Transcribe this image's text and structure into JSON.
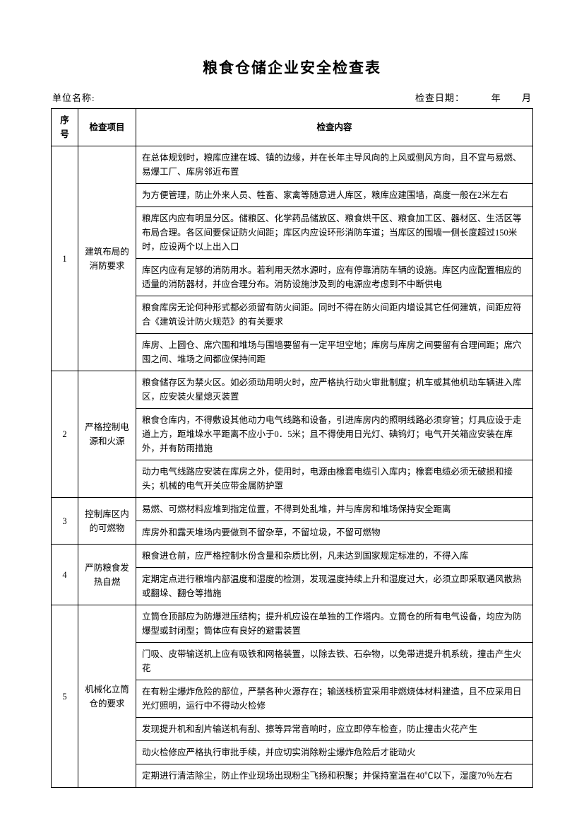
{
  "title": "粮食仓储企业安全检查表",
  "meta": {
    "unit_label": "单位名称:",
    "date_label": "检查日期：",
    "year_unit": "年",
    "month_unit": "月"
  },
  "headers": {
    "seq": "序号",
    "item": "检查项目",
    "content": "检查内容"
  },
  "sections": [
    {
      "seq": "1",
      "item": "建筑布局的消防要求",
      "rows": [
        "在总体规划时，粮库应建在城、镇的边缘，并在长年主导风向的上风或侧风方向，且不宜与易燃、易爆工厂、库房邻近布置",
        "为方便管理，防止外来人员、牲畜、家禽等随意进人库区，粮库应建围墙，高度一般在2米左右",
        "粮库区内应有明显分区。储粮区、化学药品储放区、粮食烘干区、粮食加工区、器材区、生活区等布局合理。各区间要保证防火间距；库区内应设环形消防车道；当库区的围墙一侧长度超过150米时，应设两个以上出入口",
        "库区内应有足够的消防用水。若利用天然水源时，应有停靠消防车辆的设施。库区内应配置相应的适量的消防器材，并应合理分布。消防设施涉及到的电源应考虑到不中断供电",
        "粮食库房无论何种形式都必须留有防火间距。同时不得在防火间距内增设其它任何建筑，间距应符合《建筑设计防火规范》的有关要求",
        "库房、上圆仓、席穴囤和堆场与围墙要留有一定平坦空地；库房与库房之间要留有合理间距；席穴囤之间、堆场之间都应保持间距"
      ]
    },
    {
      "seq": "2",
      "item": "严格控制电源和火源",
      "rows": [
        "粮食储存区为禁火区。如必须动用明火时，应严格执行动火审批制度；机车或其他机动车辆进入库区，应安装火星熄灭装置",
        "粮食仓库内，不得敷设其他动力电气线路和设备，引进库房内的照明线路必须穿管；灯具应设于走道上方，距堆垛水平距离不应小于0．5米；且不得使用日光灯、碘钨灯；电气开关箱应安装在库外，并有防雨措施",
        "动力电气线路应安装在库房之外，使用时，电源由橡套电缆引入库内；橡套电缆必须无破损和接头；机械的电气开关应带金属防护罩"
      ]
    },
    {
      "seq": "3",
      "item": "控制库区内的可燃物",
      "rows": [
        "易燃、可燃材料应堆到指定位置，不得到处乱堆，并与库房和堆场保持安全距离",
        "库房外和露天堆场内要做到不留杂草，不留垃圾，不留可燃物"
      ]
    },
    {
      "seq": "4",
      "item": "严防粮食发热自燃",
      "rows": [
        "粮食进仓前，应严格控制水份含量和杂质比例，凡未达到国家规定标准的，不得入库",
        "定期定点进行粮堆内部温度和湿度的检测，发现温度持续上升和湿度过大，必须立即采取通风散热或翻垛、翻仓等措施"
      ]
    },
    {
      "seq": "5",
      "item": "机械化立筒仓的要求",
      "rows": [
        "立筒仓顶部应为防爆泄压结构；提升机应设在单独的工作塔内。立筒仓的所有电气设备，均应为防爆型或封闭型；筒体应有良好的避雷装置",
        "门吸、皮带输送机上应有吸铁和网格装置，以除去铁、石杂物，以免带进提升机系统，撞击产生火花",
        "在有粉尘爆炸危险的部位，严禁各种火源存在；输送栈桥宜采用非燃烧体材料建造，且不应采用日光灯照明，运行中不得动火检修",
        "发现提升机和刮片输送机有刮、擦等异常音响时，应立即停车检查，防止撞击火花产生",
        "动火检修应严格执行审批手续，并应切实消除粉尘爆炸危险后才能动火",
        "定期进行清洁除尘，防止作业现场出现粉尘飞扬和积聚；并保持室温在40℃以下，湿度70％左右"
      ]
    }
  ]
}
